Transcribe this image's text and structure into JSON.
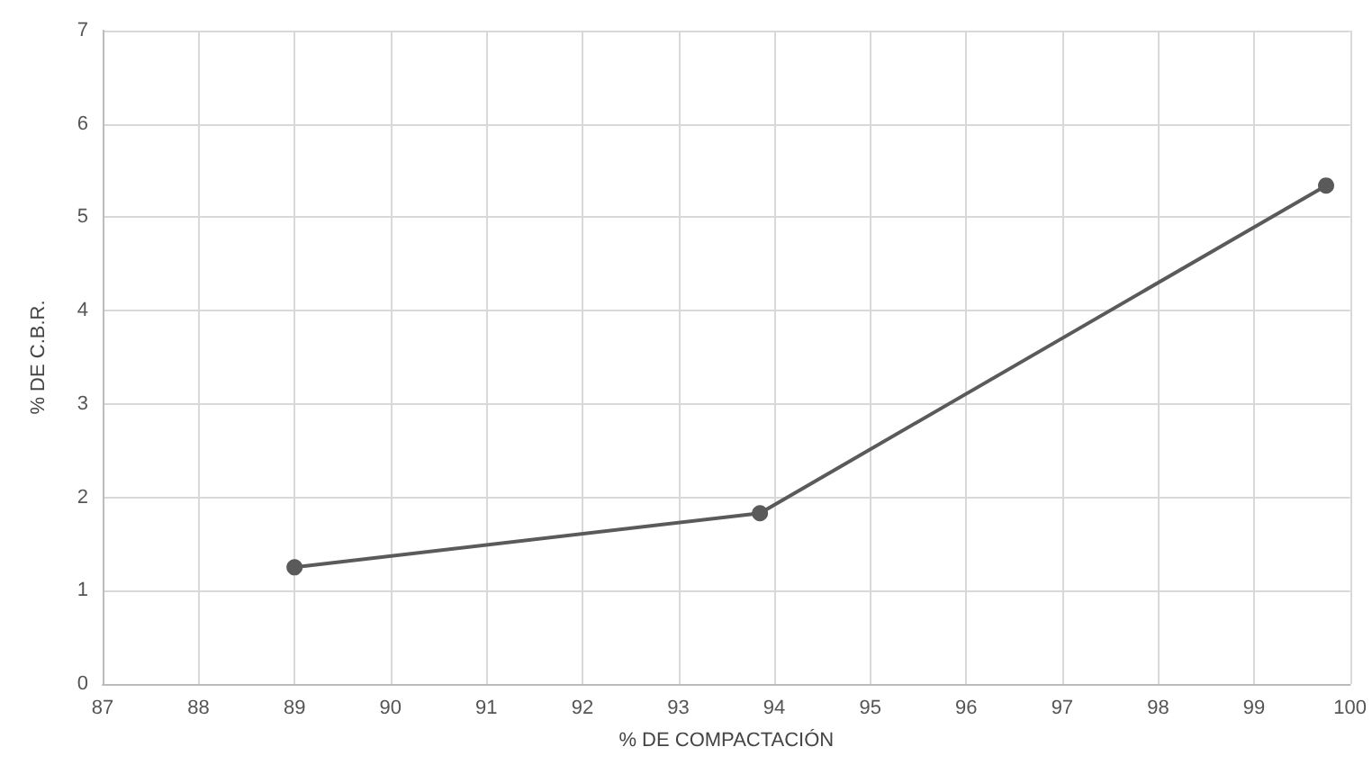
{
  "chart_data": {
    "type": "line",
    "xlabel": "% DE COMPACTACIÓN",
    "ylabel": "% DE C.B.R.",
    "x": [
      89,
      93.85,
      99.75
    ],
    "series": [
      {
        "color": "#5a5a5a",
        "values": [
          1.25,
          1.83,
          5.34
        ]
      }
    ],
    "xlim": [
      87,
      100
    ],
    "xticks": [
      87,
      88,
      89,
      90,
      91,
      92,
      93,
      94,
      95,
      96,
      97,
      98,
      99,
      100
    ],
    "ylim": [
      0,
      7
    ],
    "yticks": [
      0,
      1,
      2,
      3,
      4,
      5,
      6,
      7
    ],
    "grid": true,
    "marker": "circle",
    "line_style": "solid"
  }
}
